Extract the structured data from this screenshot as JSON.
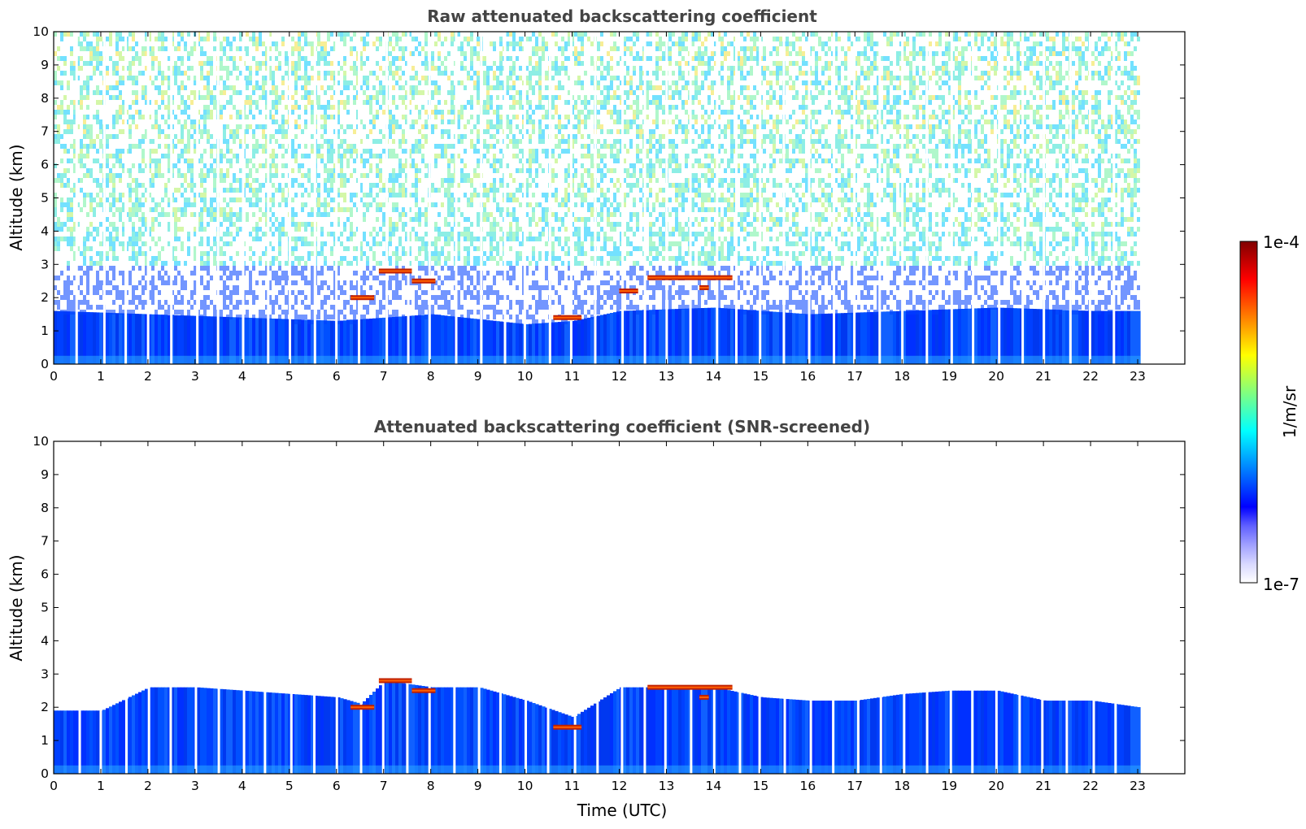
{
  "chart_data": [
    {
      "type": "heatmap",
      "title": "Raw attenuated backscattering coefficient",
      "xlabel": "",
      "ylabel": "Altitude (km)",
      "xlim": [
        0,
        24
      ],
      "ylim": [
        0,
        10
      ],
      "x_ticks": [
        0,
        1,
        2,
        3,
        4,
        5,
        6,
        7,
        8,
        9,
        10,
        11,
        12,
        13,
        14,
        15,
        16,
        17,
        18,
        19,
        20,
        21,
        22,
        23
      ],
      "y_ticks": [
        0,
        1,
        2,
        3,
        4,
        5,
        6,
        7,
        8,
        9,
        10
      ],
      "data_end_hour": 23,
      "snr_screened": false,
      "boundary_layer_top_km": [
        [
          0,
          1.6
        ],
        [
          2,
          1.5
        ],
        [
          4,
          1.4
        ],
        [
          6,
          1.3
        ],
        [
          8,
          1.5
        ],
        [
          10,
          1.2
        ],
        [
          11,
          1.3
        ],
        [
          12,
          1.6
        ],
        [
          14,
          1.7
        ],
        [
          16,
          1.5
        ],
        [
          18,
          1.6
        ],
        [
          20,
          1.7
        ],
        [
          22,
          1.6
        ],
        [
          23,
          1.6
        ]
      ],
      "cloud_layers": [
        {
          "start_hour": 6.3,
          "end_hour": 6.8,
          "altitude_km": 2.0
        },
        {
          "start_hour": 6.9,
          "end_hour": 7.6,
          "altitude_km": 2.8
        },
        {
          "start_hour": 7.6,
          "end_hour": 8.1,
          "altitude_km": 2.5
        },
        {
          "start_hour": 10.6,
          "end_hour": 11.2,
          "altitude_km": 1.4
        },
        {
          "start_hour": 12.0,
          "end_hour": 12.4,
          "altitude_km": 2.2
        },
        {
          "start_hour": 12.6,
          "end_hour": 14.4,
          "altitude_km": 2.6
        },
        {
          "start_hour": 13.7,
          "end_hour": 13.9,
          "altitude_km": 2.3
        }
      ]
    },
    {
      "type": "heatmap",
      "title": "Attenuated backscattering coefficient (SNR-screened)",
      "xlabel": "Time (UTC)",
      "ylabel": "Altitude (km)",
      "xlim": [
        0,
        24
      ],
      "ylim": [
        0,
        10
      ],
      "x_ticks": [
        0,
        1,
        2,
        3,
        4,
        5,
        6,
        7,
        8,
        9,
        10,
        11,
        12,
        13,
        14,
        15,
        16,
        17,
        18,
        19,
        20,
        21,
        22,
        23
      ],
      "y_ticks": [
        0,
        1,
        2,
        3,
        4,
        5,
        6,
        7,
        8,
        9,
        10
      ],
      "data_end_hour": 23,
      "snr_screened": true,
      "screened_top_km": [
        [
          0,
          1.9
        ],
        [
          1,
          1.9
        ],
        [
          2,
          2.6
        ],
        [
          3,
          2.6
        ],
        [
          4,
          2.5
        ],
        [
          5,
          2.4
        ],
        [
          6,
          2.3
        ],
        [
          6.5,
          2.1
        ],
        [
          7,
          2.8
        ],
        [
          8,
          2.6
        ],
        [
          9,
          2.6
        ],
        [
          10,
          2.2
        ],
        [
          11,
          1.7
        ],
        [
          12,
          2.6
        ],
        [
          13,
          2.6
        ],
        [
          14,
          2.6
        ],
        [
          15,
          2.3
        ],
        [
          16,
          2.2
        ],
        [
          17,
          2.2
        ],
        [
          18,
          2.4
        ],
        [
          19,
          2.5
        ],
        [
          20,
          2.5
        ],
        [
          21,
          2.2
        ],
        [
          22,
          2.2
        ],
        [
          23,
          2.0
        ]
      ],
      "cloud_layers": [
        {
          "start_hour": 6.3,
          "end_hour": 6.8,
          "altitude_km": 2.0
        },
        {
          "start_hour": 6.9,
          "end_hour": 7.6,
          "altitude_km": 2.8
        },
        {
          "start_hour": 7.6,
          "end_hour": 8.1,
          "altitude_km": 2.5
        },
        {
          "start_hour": 10.6,
          "end_hour": 11.2,
          "altitude_km": 1.4
        },
        {
          "start_hour": 12.6,
          "end_hour": 14.4,
          "altitude_km": 2.6
        },
        {
          "start_hour": 13.7,
          "end_hour": 13.9,
          "altitude_km": 2.3
        }
      ]
    }
  ],
  "colorbar": {
    "min_label": "1e-7",
    "max_label": "1e-4",
    "unit_label": "1/m/sr",
    "scale": "log",
    "colors": [
      "#ffffff",
      "#d8d8ff",
      "#a0a0ff",
      "#6060ff",
      "#0000ff",
      "#0040ff",
      "#0080ff",
      "#00c0ff",
      "#00ffff",
      "#40ffc0",
      "#80ff80",
      "#c0ff40",
      "#ffff00",
      "#ffc000",
      "#ff8000",
      "#ff4000",
      "#ff0000",
      "#c00000",
      "#800000"
    ]
  }
}
